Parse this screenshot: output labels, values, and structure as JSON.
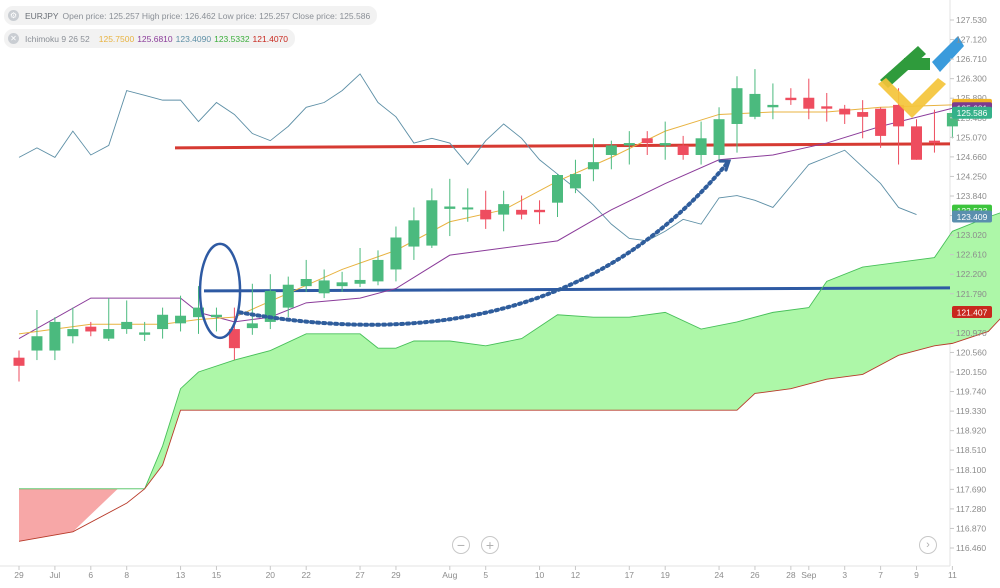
{
  "legend": {
    "symbol": "EURJPY",
    "ohlc_text": "Open price: 125.257 High price: 126.462 Low price: 125.257 Close price: 125.586",
    "indicator_name": "Ichimoku 9 26 52",
    "indicator_values": [
      "125.7500",
      "125.6810",
      "123.4090",
      "123.5332",
      "121.4070"
    ]
  },
  "colors": {
    "bull": "#4bba7e",
    "bear": "#ee4d5f",
    "tenkan": "#e8b341",
    "kijun": "#8b3c9a",
    "chikou": "#5d8fa6",
    "span_a": "#48c05a",
    "span_b": "#b83a2a",
    "cloud_bull": "#adf7a8",
    "cloud_bear": "#f7a7a7",
    "red_level": "#d63a32",
    "blue_level": "#2e5aa3",
    "forecast_arrow": "#2f5d9c"
  },
  "zoom_controls": {
    "minus": "−",
    "plus": "+",
    "forward": "›"
  },
  "chart_data": {
    "type": "candlestick",
    "instrument": "EURJPY",
    "indicator": "Ichimoku 9 26 52",
    "y_range": [
      116.2,
      127.75
    ],
    "y_ticks": [
      "127.530",
      "127.120",
      "126.710",
      "126.300",
      "125.890",
      "125.480",
      "125.070",
      "124.660",
      "124.250",
      "123.840",
      "123.430",
      "123.020",
      "122.610",
      "122.200",
      "121.790",
      "121.380",
      "120.970",
      "120.560",
      "120.150",
      "119.740",
      "119.330",
      "118.920",
      "118.510",
      "118.100",
      "117.690",
      "117.280",
      "116.870",
      "116.460"
    ],
    "x_labels": [
      {
        "label": "29",
        "pos": 0
      },
      {
        "label": "Jul",
        "pos": 2
      },
      {
        "label": "6",
        "pos": 4
      },
      {
        "label": "8",
        "pos": 6
      },
      {
        "label": "13",
        "pos": 9
      },
      {
        "label": "15",
        "pos": 11
      },
      {
        "label": "20",
        "pos": 14
      },
      {
        "label": "22",
        "pos": 16
      },
      {
        "label": "27",
        "pos": 19
      },
      {
        "label": "29",
        "pos": 21
      },
      {
        "label": "Aug",
        "pos": 24
      },
      {
        "label": "5",
        "pos": 26
      },
      {
        "label": "10",
        "pos": 29
      },
      {
        "label": "12",
        "pos": 31
      },
      {
        "label": "17",
        "pos": 34
      },
      {
        "label": "19",
        "pos": 36
      },
      {
        "label": "24",
        "pos": 39
      },
      {
        "label": "26",
        "pos": 41
      },
      {
        "label": "28",
        "pos": 43
      },
      {
        "label": "Sep",
        "pos": 44
      },
      {
        "label": "3",
        "pos": 46
      },
      {
        "label": "7",
        "pos": 48
      },
      {
        "label": "9",
        "pos": 50
      },
      {
        "label": "11",
        "pos": 52
      }
    ],
    "candles": [
      {
        "o": 120.45,
        "h": 120.6,
        "l": 119.95,
        "c": 120.28
      },
      {
        "o": 120.6,
        "h": 121.45,
        "l": 120.4,
        "c": 120.9
      },
      {
        "o": 120.6,
        "h": 121.3,
        "l": 120.4,
        "c": 121.2
      },
      {
        "o": 120.9,
        "h": 121.5,
        "l": 120.75,
        "c": 121.05
      },
      {
        "o": 121.1,
        "h": 121.2,
        "l": 120.9,
        "c": 121.0
      },
      {
        "o": 120.85,
        "h": 121.7,
        "l": 120.8,
        "c": 121.05
      },
      {
        "o": 121.05,
        "h": 121.65,
        "l": 120.95,
        "c": 121.2
      },
      {
        "o": 120.93,
        "h": 121.2,
        "l": 120.8,
        "c": 120.98
      },
      {
        "o": 121.05,
        "h": 121.5,
        "l": 120.85,
        "c": 121.35
      },
      {
        "o": 121.17,
        "h": 121.75,
        "l": 121.0,
        "c": 121.33
      },
      {
        "o": 121.3,
        "h": 121.95,
        "l": 120.95,
        "c": 121.5
      },
      {
        "o": 121.3,
        "h": 121.5,
        "l": 121.0,
        "c": 121.35
      },
      {
        "o": 121.05,
        "h": 121.5,
        "l": 120.4,
        "c": 120.65
      },
      {
        "o": 121.07,
        "h": 122.0,
        "l": 120.93,
        "c": 121.17
      },
      {
        "o": 121.2,
        "h": 122.2,
        "l": 121.05,
        "c": 121.85
      },
      {
        "o": 121.5,
        "h": 122.15,
        "l": 121.3,
        "c": 121.98
      },
      {
        "o": 121.95,
        "h": 122.5,
        "l": 121.83,
        "c": 122.1
      },
      {
        "o": 121.8,
        "h": 122.3,
        "l": 121.7,
        "c": 122.07
      },
      {
        "o": 121.95,
        "h": 122.25,
        "l": 121.83,
        "c": 122.03
      },
      {
        "o": 122.0,
        "h": 122.75,
        "l": 121.93,
        "c": 122.08
      },
      {
        "o": 122.05,
        "h": 122.7,
        "l": 121.97,
        "c": 122.5
      },
      {
        "o": 122.3,
        "h": 123.2,
        "l": 122.05,
        "c": 122.97
      },
      {
        "o": 122.78,
        "h": 123.6,
        "l": 122.5,
        "c": 123.33
      },
      {
        "o": 122.8,
        "h": 124.0,
        "l": 122.75,
        "c": 123.75
      },
      {
        "o": 123.57,
        "h": 124.2,
        "l": 123.0,
        "c": 123.62
      },
      {
        "o": 123.6,
        "h": 124.0,
        "l": 123.3,
        "c": 123.6
      },
      {
        "o": 123.55,
        "h": 123.95,
        "l": 123.15,
        "c": 123.35
      },
      {
        "o": 123.45,
        "h": 123.95,
        "l": 123.1,
        "c": 123.67
      },
      {
        "o": 123.55,
        "h": 123.85,
        "l": 123.35,
        "c": 123.45
      },
      {
        "o": 123.55,
        "h": 123.75,
        "l": 123.25,
        "c": 123.5
      },
      {
        "o": 123.7,
        "h": 124.3,
        "l": 123.4,
        "c": 124.28
      },
      {
        "o": 124.0,
        "h": 124.6,
        "l": 123.9,
        "c": 124.3
      },
      {
        "o": 124.4,
        "h": 125.05,
        "l": 124.15,
        "c": 124.55
      },
      {
        "o": 124.7,
        "h": 125.0,
        "l": 124.4,
        "c": 124.9
      },
      {
        "o": 124.9,
        "h": 125.2,
        "l": 124.5,
        "c": 124.95
      },
      {
        "o": 125.05,
        "h": 125.2,
        "l": 124.7,
        "c": 124.95
      },
      {
        "o": 124.9,
        "h": 125.4,
        "l": 124.6,
        "c": 124.95
      },
      {
        "o": 124.9,
        "h": 125.1,
        "l": 124.6,
        "c": 124.7
      },
      {
        "o": 124.7,
        "h": 125.4,
        "l": 124.5,
        "c": 125.05
      },
      {
        "o": 124.7,
        "h": 125.7,
        "l": 124.6,
        "c": 125.45
      },
      {
        "o": 125.35,
        "h": 126.35,
        "l": 124.75,
        "c": 126.1
      },
      {
        "o": 125.5,
        "h": 126.5,
        "l": 125.45,
        "c": 125.98
      },
      {
        "o": 125.7,
        "h": 126.2,
        "l": 125.45,
        "c": 125.75
      },
      {
        "o": 125.9,
        "h": 126.1,
        "l": 125.75,
        "c": 125.85
      },
      {
        "o": 125.9,
        "h": 126.3,
        "l": 125.45,
        "c": 125.67
      },
      {
        "o": 125.72,
        "h": 126.0,
        "l": 125.4,
        "c": 125.67
      },
      {
        "o": 125.67,
        "h": 125.75,
        "l": 125.35,
        "c": 125.55
      },
      {
        "o": 125.6,
        "h": 125.85,
        "l": 125.05,
        "c": 125.5
      },
      {
        "o": 125.67,
        "h": 125.7,
        "l": 124.85,
        "c": 125.1
      },
      {
        "o": 125.75,
        "h": 126.1,
        "l": 124.5,
        "c": 125.3
      },
      {
        "o": 125.3,
        "h": 125.45,
        "l": 124.6,
        "c": 124.6
      },
      {
        "o": 125.0,
        "h": 125.65,
        "l": 124.75,
        "c": 124.95
      },
      {
        "o": 125.3,
        "h": 125.6,
        "l": 125.05,
        "c": 125.58
      }
    ],
    "ichimoku": {
      "tenkan": [
        {
          "x": 0,
          "y": 120.95
        },
        {
          "x": 4,
          "y": 121.15
        },
        {
          "x": 8,
          "y": 121.15
        },
        {
          "x": 10,
          "y": 121.25
        },
        {
          "x": 12,
          "y": 121.3
        },
        {
          "x": 15,
          "y": 121.8
        },
        {
          "x": 18,
          "y": 122.3
        },
        {
          "x": 21,
          "y": 122.7
        },
        {
          "x": 24,
          "y": 123.3
        },
        {
          "x": 27,
          "y": 123.55
        },
        {
          "x": 30,
          "y": 124.15
        },
        {
          "x": 33,
          "y": 124.65
        },
        {
          "x": 36,
          "y": 125.2
        },
        {
          "x": 39,
          "y": 125.55
        },
        {
          "x": 42,
          "y": 125.6
        },
        {
          "x": 45,
          "y": 125.6
        },
        {
          "x": 48,
          "y": 125.7
        },
        {
          "x": 52,
          "y": 125.75
        }
      ],
      "kijun": [
        {
          "x": 0,
          "y": 120.85
        },
        {
          "x": 4,
          "y": 121.7
        },
        {
          "x": 9,
          "y": 121.7
        },
        {
          "x": 10,
          "y": 121.4
        },
        {
          "x": 12,
          "y": 121.2
        },
        {
          "x": 14,
          "y": 121.3
        },
        {
          "x": 16,
          "y": 121.6
        },
        {
          "x": 19,
          "y": 121.7
        },
        {
          "x": 21,
          "y": 121.9
        },
        {
          "x": 24,
          "y": 122.6
        },
        {
          "x": 30,
          "y": 122.9
        },
        {
          "x": 33,
          "y": 123.55
        },
        {
          "x": 36,
          "y": 124.1
        },
        {
          "x": 39,
          "y": 124.6
        },
        {
          "x": 42,
          "y": 124.7
        },
        {
          "x": 45,
          "y": 124.95
        },
        {
          "x": 48,
          "y": 125.3
        },
        {
          "x": 52,
          "y": 125.68
        }
      ],
      "chikou": [
        {
          "x": 0,
          "y": 124.65
        },
        {
          "x": 1,
          "y": 124.85
        },
        {
          "x": 2,
          "y": 124.65
        },
        {
          "x": 3,
          "y": 125.2
        },
        {
          "x": 4,
          "y": 124.7
        },
        {
          "x": 5,
          "y": 124.9
        },
        {
          "x": 6,
          "y": 126.05
        },
        {
          "x": 7,
          "y": 125.95
        },
        {
          "x": 8,
          "y": 125.85
        },
        {
          "x": 9,
          "y": 125.85
        },
        {
          "x": 10,
          "y": 125.4
        },
        {
          "x": 11,
          "y": 125.8
        },
        {
          "x": 12,
          "y": 125.55
        },
        {
          "x": 13,
          "y": 125.15
        },
        {
          "x": 14,
          "y": 125.0
        },
        {
          "x": 15,
          "y": 125.3
        },
        {
          "x": 16,
          "y": 125.7
        },
        {
          "x": 17,
          "y": 125.8
        },
        {
          "x": 18,
          "y": 126.05
        },
        {
          "x": 19,
          "y": 126.4
        },
        {
          "x": 20,
          "y": 125.8
        },
        {
          "x": 21,
          "y": 125.5
        },
        {
          "x": 22,
          "y": 124.95
        },
        {
          "x": 23,
          "y": 125.05
        },
        {
          "x": 24,
          "y": 124.95
        },
        {
          "x": 25,
          "y": 124.5
        },
        {
          "x": 26,
          "y": 125.0
        },
        {
          "x": 27,
          "y": 125.35
        },
        {
          "x": 28,
          "y": 125.05
        },
        {
          "x": 29,
          "y": 124.6
        },
        {
          "x": 30,
          "y": 124.3
        },
        {
          "x": 31,
          "y": 124.0
        },
        {
          "x": 32,
          "y": 123.65
        },
        {
          "x": 33,
          "y": 123.25
        },
        {
          "x": 34,
          "y": 122.95
        },
        {
          "x": 35,
          "y": 122.9
        },
        {
          "x": 36,
          "y": 123.1
        },
        {
          "x": 37,
          "y": 123.35
        },
        {
          "x": 38,
          "y": 123.25
        },
        {
          "x": 39,
          "y": 123.8
        },
        {
          "x": 40,
          "y": 123.85
        },
        {
          "x": 41,
          "y": 123.75
        },
        {
          "x": 42,
          "y": 123.6
        },
        {
          "x": 43,
          "y": 124.05
        },
        {
          "x": 44,
          "y": 124.5
        },
        {
          "x": 45,
          "y": 124.65
        },
        {
          "x": 46,
          "y": 124.8
        },
        {
          "x": 47,
          "y": 124.45
        },
        {
          "x": 48,
          "y": 124.1
        },
        {
          "x": 49,
          "y": 123.6
        },
        {
          "x": 50,
          "y": 123.45
        }
      ],
      "cloud_top": [
        {
          "x": 0,
          "y": 117.7
        },
        {
          "x": 7,
          "y": 117.7
        },
        {
          "x": 8,
          "y": 118.6
        },
        {
          "x": 9,
          "y": 119.8
        },
        {
          "x": 10,
          "y": 120.15
        },
        {
          "x": 12,
          "y": 120.4
        },
        {
          "x": 14,
          "y": 120.6
        },
        {
          "x": 16,
          "y": 120.95
        },
        {
          "x": 19,
          "y": 120.95
        },
        {
          "x": 20,
          "y": 120.65
        },
        {
          "x": 21,
          "y": 120.65
        },
        {
          "x": 22,
          "y": 120.8
        },
        {
          "x": 24,
          "y": 120.8
        },
        {
          "x": 26,
          "y": 120.7
        },
        {
          "x": 28,
          "y": 120.85
        },
        {
          "x": 30,
          "y": 121.35
        },
        {
          "x": 32,
          "y": 121.3
        },
        {
          "x": 34,
          "y": 121.3
        },
        {
          "x": 36,
          "y": 121.4
        },
        {
          "x": 38,
          "y": 121.05
        },
        {
          "x": 40,
          "y": 121.2
        },
        {
          "x": 42,
          "y": 121.4
        },
        {
          "x": 44,
          "y": 121.5
        },
        {
          "x": 45,
          "y": 122.05
        },
        {
          "x": 47,
          "y": 122.35
        },
        {
          "x": 49,
          "y": 122.45
        },
        {
          "x": 51,
          "y": 122.55
        },
        {
          "x": 52,
          "y": 123.1
        },
        {
          "x": 54,
          "y": 123.4
        },
        {
          "x": 55,
          "y": 123.53
        }
      ],
      "cloud_bottom": [
        {
          "x": 0,
          "y": 116.6
        },
        {
          "x": 3,
          "y": 116.8
        },
        {
          "x": 6,
          "y": 117.4
        },
        {
          "x": 7,
          "y": 117.7
        },
        {
          "x": 8,
          "y": 118.2
        },
        {
          "x": 9,
          "y": 119.35
        },
        {
          "x": 40,
          "y": 119.35
        },
        {
          "x": 41,
          "y": 119.7
        },
        {
          "x": 43,
          "y": 119.8
        },
        {
          "x": 45,
          "y": 120.0
        },
        {
          "x": 47,
          "y": 120.1
        },
        {
          "x": 49,
          "y": 120.5
        },
        {
          "x": 51,
          "y": 120.7
        },
        {
          "x": 52,
          "y": 120.75
        },
        {
          "x": 54,
          "y": 121.0
        },
        {
          "x": 55,
          "y": 121.4
        }
      ]
    },
    "red_level": 124.85,
    "blue_level": 121.85,
    "price_tags": [
      {
        "label": "125.750",
        "value": 125.75,
        "color": "#f0b429"
      },
      {
        "label": "125.681",
        "value": 125.681,
        "color": "#7b3a8f"
      },
      {
        "label": "125.586",
        "value": 125.586,
        "color": "#35b18a"
      },
      {
        "label": "123.533",
        "value": 123.533,
        "color": "#3cc43c"
      },
      {
        "label": "123.409",
        "value": 123.409,
        "color": "#5a8fae"
      },
      {
        "label": "121.407",
        "value": 121.407,
        "color": "#c8281e"
      }
    ]
  }
}
